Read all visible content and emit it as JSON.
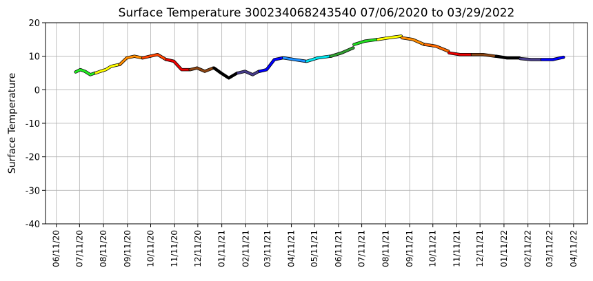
{
  "chart_data": {
    "type": "line",
    "title": "Surface Temperature 300234068243540  07/06/2020 to 03/29/2022",
    "y_label": "Surface Temperature",
    "ylim": [
      -40,
      20
    ],
    "yticks": [
      -40,
      -30,
      -20,
      -10,
      0,
      10,
      20
    ],
    "xlim": [
      "2020-05-28",
      "2022-04-29"
    ],
    "xticks": [
      {
        "value": "2020-06-11",
        "label": "06/11/20"
      },
      {
        "value": "2020-07-11",
        "label": "07/11/20"
      },
      {
        "value": "2020-08-11",
        "label": "08/11/20"
      },
      {
        "value": "2020-09-11",
        "label": "09/11/20"
      },
      {
        "value": "2020-10-11",
        "label": "10/11/20"
      },
      {
        "value": "2020-11-11",
        "label": "11/11/20"
      },
      {
        "value": "2020-12-11",
        "label": "12/11/20"
      },
      {
        "value": "2021-01-11",
        "label": "01/11/21"
      },
      {
        "value": "2021-02-11",
        "label": "02/11/21"
      },
      {
        "value": "2021-03-11",
        "label": "03/11/21"
      },
      {
        "value": "2021-04-11",
        "label": "04/11/21"
      },
      {
        "value": "2021-05-11",
        "label": "05/11/21"
      },
      {
        "value": "2021-06-11",
        "label": "06/11/21"
      },
      {
        "value": "2021-07-11",
        "label": "07/11/21"
      },
      {
        "value": "2021-08-11",
        "label": "08/11/21"
      },
      {
        "value": "2021-09-11",
        "label": "09/11/21"
      },
      {
        "value": "2021-10-11",
        "label": "10/11/21"
      },
      {
        "value": "2021-11-11",
        "label": "11/11/21"
      },
      {
        "value": "2021-12-11",
        "label": "12/11/21"
      },
      {
        "value": "2022-01-11",
        "label": "01/11/22"
      },
      {
        "value": "2022-02-11",
        "label": "02/11/22"
      },
      {
        "value": "2022-03-11",
        "label": "03/11/22"
      },
      {
        "value": "2022-04-11",
        "label": "04/11/22"
      }
    ],
    "grid": true,
    "series": [
      {
        "color": "#22ee22",
        "x": [
          "2020-07-06",
          "2020-07-12",
          "2020-07-18",
          "2020-07-25",
          "2020-07-31"
        ],
        "values": [
          5.3,
          6,
          5.5,
          4.5,
          5
        ]
      },
      {
        "color": "#ffff00",
        "x": [
          "2020-08-01",
          "2020-08-07",
          "2020-08-14",
          "2020-08-21",
          "2020-08-31"
        ],
        "values": [
          5,
          5.5,
          6,
          7,
          7.5
        ]
      },
      {
        "color": "#ff8c00",
        "x": [
          "2020-09-01",
          "2020-09-10",
          "2020-09-20",
          "2020-09-30"
        ],
        "values": [
          7.5,
          9.5,
          10,
          9.5
        ]
      },
      {
        "color": "#ff4500",
        "x": [
          "2020-10-01",
          "2020-10-10",
          "2020-10-20",
          "2020-10-31"
        ],
        "values": [
          9.5,
          10,
          10.5,
          9
        ]
      },
      {
        "color": "#ee0000",
        "x": [
          "2020-11-01",
          "2020-11-10",
          "2020-11-20",
          "2020-11-30"
        ],
        "values": [
          9,
          8.5,
          6,
          6
        ]
      },
      {
        "color": "#8b4513",
        "x": [
          "2020-12-01",
          "2020-12-10",
          "2020-12-20",
          "2020-12-31"
        ],
        "values": [
          6,
          6.5,
          5.5,
          6.5
        ]
      },
      {
        "color": "#000000",
        "x": [
          "2021-01-01",
          "2021-01-10",
          "2021-01-20",
          "2021-01-31"
        ],
        "values": [
          6.5,
          5,
          3.5,
          5
        ]
      },
      {
        "color": "#483d8b",
        "x": [
          "2021-02-01",
          "2021-02-10",
          "2021-02-20",
          "2021-02-28"
        ],
        "values": [
          5,
          5.5,
          4.5,
          5.5
        ]
      },
      {
        "color": "#0000ff",
        "x": [
          "2021-03-01",
          "2021-03-10",
          "2021-03-20",
          "2021-03-31"
        ],
        "values": [
          5.5,
          6,
          9,
          9.5
        ]
      },
      {
        "color": "#1e90ff",
        "x": [
          "2021-04-01",
          "2021-04-15",
          "2021-04-30"
        ],
        "values": [
          9.5,
          9,
          8.5
        ]
      },
      {
        "color": "#00e5ee",
        "x": [
          "2021-05-01",
          "2021-05-15",
          "2021-05-31"
        ],
        "values": [
          8.5,
          9.5,
          10
        ]
      },
      {
        "color": "#32a032",
        "x": [
          "2021-06-01",
          "2021-06-15",
          "2021-06-30"
        ],
        "values": [
          10,
          11,
          12.5
        ]
      },
      {
        "color": "#22dd22",
        "x": [
          "2021-07-01",
          "2021-07-15",
          "2021-07-31"
        ],
        "values": [
          13.5,
          14.5,
          15
        ]
      },
      {
        "color": "#ffff00",
        "x": [
          "2021-08-01",
          "2021-08-15",
          "2021-08-31"
        ],
        "values": [
          15,
          15.5,
          16
        ]
      },
      {
        "color": "#ff8c00",
        "x": [
          "2021-09-01",
          "2021-09-15",
          "2021-09-30"
        ],
        "values": [
          15.5,
          15,
          13.5
        ]
      },
      {
        "color": "#ff6a00",
        "x": [
          "2021-10-01",
          "2021-10-15",
          "2021-10-31"
        ],
        "values": [
          13.5,
          13,
          11.5
        ]
      },
      {
        "color": "#ee0000",
        "x": [
          "2021-11-01",
          "2021-11-15",
          "2021-11-30"
        ],
        "values": [
          11,
          10.5,
          10.5
        ]
      },
      {
        "color": "#8b4513",
        "x": [
          "2021-12-01",
          "2021-12-15",
          "2021-12-31"
        ],
        "values": [
          10.5,
          10.5,
          10
        ]
      },
      {
        "color": "#000000",
        "x": [
          "2022-01-01",
          "2022-01-15",
          "2022-01-31"
        ],
        "values": [
          10,
          9.5,
          9.5
        ]
      },
      {
        "color": "#483d8b",
        "x": [
          "2022-02-01",
          "2022-02-15",
          "2022-02-28"
        ],
        "values": [
          9.3,
          9,
          9
        ]
      },
      {
        "color": "#0000ff",
        "x": [
          "2022-03-01",
          "2022-03-15",
          "2022-03-25",
          "2022-03-29"
        ],
        "values": [
          9,
          9,
          9.5,
          9.7
        ]
      }
    ]
  }
}
